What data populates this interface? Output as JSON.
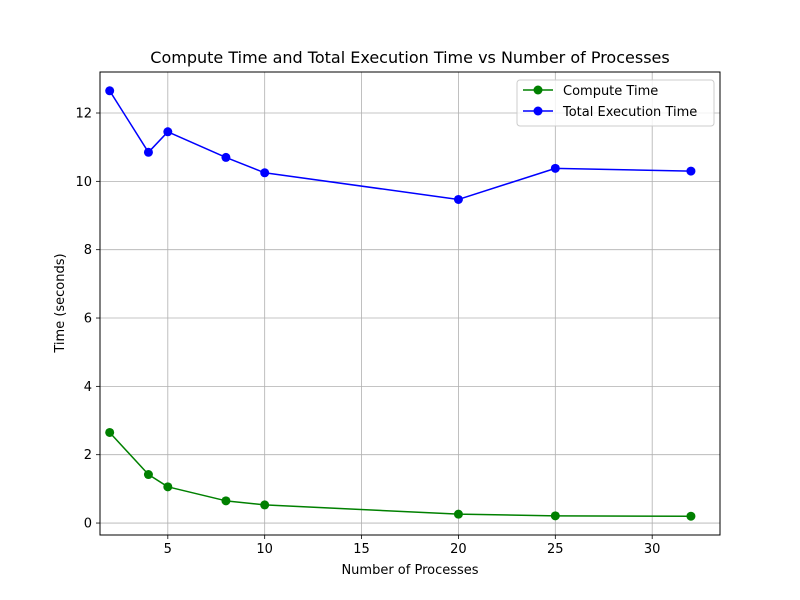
{
  "chart_data": {
    "type": "line",
    "title": "Compute Time and Total Execution Time vs Number of Processes",
    "xlabel": "Number of Processes",
    "ylabel": "Time (seconds)",
    "xlim": [
      1.5,
      33.5
    ],
    "ylim": [
      -0.35,
      13.2
    ],
    "xticks": [
      5,
      10,
      15,
      20,
      25,
      30
    ],
    "yticks": [
      0,
      2,
      4,
      6,
      8,
      10,
      12
    ],
    "grid": true,
    "legend_position": "top-right",
    "x": [
      2,
      4,
      5,
      8,
      10,
      20,
      25,
      32
    ],
    "series": [
      {
        "name": "Compute Time",
        "color": "#008000",
        "marker": "circle",
        "values": [
          2.65,
          1.42,
          1.06,
          0.65,
          0.53,
          0.26,
          0.21,
          0.2
        ]
      },
      {
        "name": "Total Execution Time",
        "color": "#0000ff",
        "marker": "circle",
        "values": [
          12.65,
          10.85,
          11.45,
          10.7,
          10.25,
          9.47,
          10.38,
          10.3
        ]
      }
    ]
  }
}
